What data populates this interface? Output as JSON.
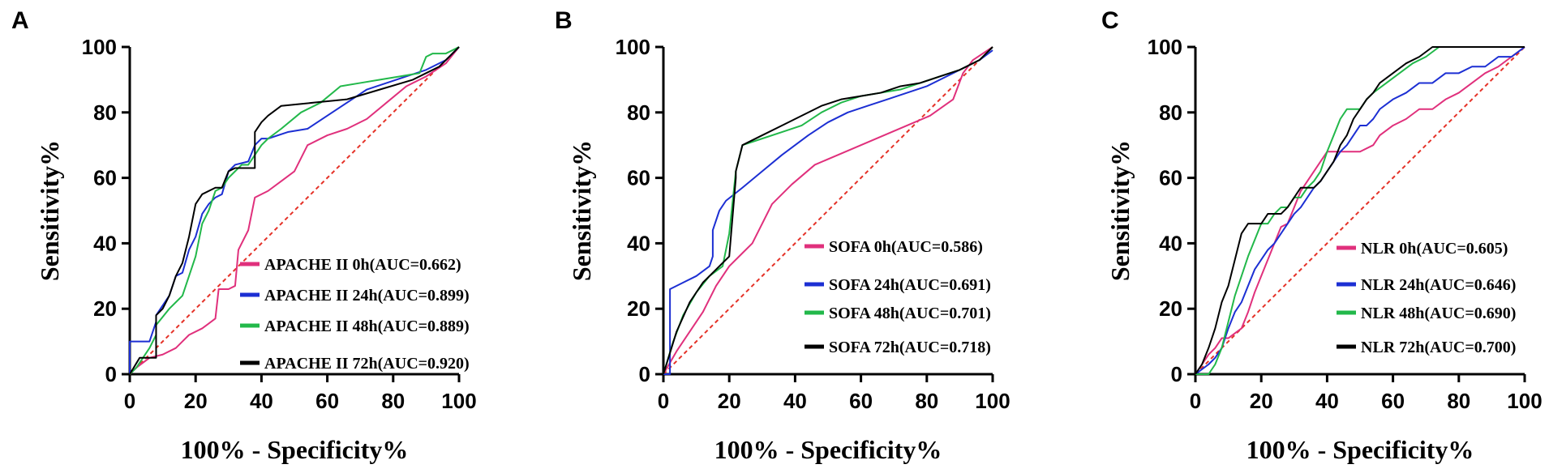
{
  "chart_data": [
    {
      "type": "line",
      "panel_label": "A",
      "xlabel": "100% - Specificity%",
      "ylabel": "Sensitivity%",
      "xlim": [
        0,
        100
      ],
      "ylim": [
        0,
        100
      ],
      "xticks": [
        "0",
        "20",
        "40",
        "60",
        "80",
        "100"
      ],
      "yticks": [
        "0",
        "20",
        "40",
        "60",
        "80",
        "100"
      ],
      "legend_position": "bottom-right",
      "reference_line": {
        "x": [
          0,
          100
        ],
        "y": [
          0,
          100
        ],
        "color": "#e53228",
        "style": "dashed"
      },
      "series": [
        {
          "name": "APACHE II 0h(AUC=0.662)",
          "color": "#e0307c",
          "x": [
            0,
            2,
            6,
            10,
            14,
            16,
            18,
            22,
            26,
            27,
            30,
            32,
            33,
            36,
            38,
            42,
            46,
            50,
            54,
            60,
            66,
            72,
            78,
            84,
            90,
            96,
            100
          ],
          "y": [
            0,
            2,
            5,
            6,
            8,
            10,
            12,
            14,
            17,
            26,
            26,
            27,
            38,
            44,
            54,
            56,
            59,
            62,
            70,
            73,
            75,
            78,
            83,
            88,
            91,
            95,
            100
          ]
        },
        {
          "name": "APACHE II 24h(AUC=0.899)",
          "color": "#1c2fd3",
          "x": [
            0,
            0,
            3,
            6,
            8,
            8,
            12,
            14,
            16,
            18,
            20,
            22,
            24,
            26,
            28,
            30,
            32,
            36,
            38,
            40,
            42,
            48,
            54,
            60,
            66,
            72,
            78,
            84,
            90,
            96,
            100
          ],
          "y": [
            0,
            10,
            10,
            10,
            16,
            18,
            24,
            30,
            31,
            38,
            42,
            49,
            52,
            54,
            55,
            62,
            64,
            65,
            70,
            72,
            72,
            74,
            75,
            79,
            83,
            87,
            89,
            91,
            93,
            96,
            100
          ]
        },
        {
          "name": "APACHE II 48h(AUC=0.889)",
          "color": "#22b84a",
          "x": [
            0,
            2,
            4,
            6,
            8,
            8,
            12,
            14,
            16,
            18,
            20,
            22,
            24,
            26,
            28,
            30,
            32,
            34,
            36,
            38,
            40,
            42,
            46,
            52,
            58,
            64,
            70,
            76,
            82,
            88,
            90,
            92,
            96,
            100
          ],
          "y": [
            0,
            2,
            5,
            8,
            12,
            15,
            20,
            22,
            24,
            30,
            36,
            46,
            50,
            56,
            57,
            60,
            62,
            64,
            64,
            67,
            70,
            72,
            75,
            80,
            83,
            88,
            89,
            90,
            91,
            92,
            97,
            98,
            98,
            100
          ]
        },
        {
          "name": "APACHE II 72h(AUC=0.920)",
          "color": "#000000",
          "x": [
            0,
            3,
            5,
            8,
            8,
            10,
            12,
            14,
            16,
            18,
            20,
            22,
            26,
            28,
            30,
            32,
            36,
            38,
            38,
            40,
            42,
            46,
            56,
            66,
            76,
            86,
            90,
            94,
            96,
            98,
            100
          ],
          "y": [
            0,
            5,
            5,
            5,
            18,
            20,
            24,
            30,
            34,
            42,
            52,
            55,
            57,
            57,
            62,
            63,
            63,
            63,
            74,
            77,
            79,
            82,
            83,
            84,
            87,
            90,
            92,
            94,
            96,
            98,
            100
          ]
        }
      ]
    },
    {
      "type": "line",
      "panel_label": "B",
      "xlabel": "100% - Specificity%",
      "ylabel": "Sensitivity%",
      "xlim": [
        0,
        100
      ],
      "ylim": [
        0,
        100
      ],
      "xticks": [
        "0",
        "20",
        "40",
        "60",
        "80",
        "100"
      ],
      "yticks": [
        "0",
        "20",
        "40",
        "60",
        "80",
        "100"
      ],
      "legend_position": "bottom-right",
      "reference_line": {
        "x": [
          0,
          100
        ],
        "y": [
          0,
          100
        ],
        "color": "#e53228",
        "style": "dashed"
      },
      "series": [
        {
          "name": "SOFA 0h(AUC=0.586)",
          "color": "#e0307c",
          "x": [
            0,
            4,
            8,
            12,
            16,
            20,
            24,
            27,
            30,
            33,
            39,
            46,
            53,
            60,
            67,
            74,
            81,
            88,
            91,
            94,
            100
          ],
          "y": [
            0,
            7,
            13,
            19,
            27,
            33,
            37,
            40,
            46,
            52,
            58,
            64,
            67,
            70,
            73,
            76,
            79,
            84,
            92,
            96,
            100
          ]
        },
        {
          "name": "SOFA 24h(AUC=0.691)",
          "color": "#1c2fd3",
          "x": [
            0,
            2,
            2,
            6,
            10,
            14,
            15,
            15,
            17,
            19,
            24,
            30,
            36,
            44,
            50,
            56,
            62,
            68,
            74,
            80,
            86,
            92,
            96,
            100
          ],
          "y": [
            0,
            0,
            26,
            28,
            30,
            33,
            36,
            44,
            50,
            53,
            57,
            62,
            67,
            73,
            77,
            80,
            82,
            84,
            86,
            88,
            91,
            94,
            96,
            99
          ]
        },
        {
          "name": "SOFA 48h(AUC=0.701)",
          "color": "#22b84a",
          "x": [
            0,
            3,
            6,
            10,
            14,
            18,
            20,
            22,
            24,
            30,
            36,
            42,
            48,
            54,
            60,
            66,
            72,
            78,
            84,
            90,
            96,
            100
          ],
          "y": [
            0,
            10,
            18,
            25,
            30,
            33,
            43,
            62,
            70,
            72,
            74,
            76,
            80,
            83,
            85,
            86,
            87,
            89,
            91,
            93,
            96,
            100
          ]
        },
        {
          "name": "SOFA 72h(AUC=0.718)",
          "color": "#000000",
          "x": [
            0,
            4,
            8,
            12,
            16,
            20,
            22,
            22,
            24,
            30,
            36,
            42,
            48,
            54,
            60,
            66,
            72,
            78,
            84,
            90,
            96,
            100
          ],
          "y": [
            0,
            13,
            22,
            28,
            32,
            36,
            60,
            62,
            70,
            73,
            76,
            79,
            82,
            84,
            85,
            86,
            88,
            89,
            91,
            93,
            96,
            100
          ]
        }
      ]
    },
    {
      "type": "line",
      "panel_label": "C",
      "xlabel": "100% - Specificity%",
      "ylabel": "Sensitivity%",
      "xlim": [
        0,
        100
      ],
      "ylim": [
        0,
        100
      ],
      "xticks": [
        "0",
        "20",
        "40",
        "60",
        "80",
        "100"
      ],
      "yticks": [
        "0",
        "20",
        "40",
        "60",
        "80",
        "100"
      ],
      "legend_position": "bottom-right",
      "reference_line": {
        "x": [
          0,
          100
        ],
        "y": [
          0,
          100
        ],
        "color": "#e53228",
        "style": "dashed"
      },
      "series": [
        {
          "name": "NLR 0h(AUC=0.605)",
          "color": "#e0307c",
          "x": [
            0,
            2,
            4,
            6,
            8,
            10,
            14,
            16,
            18,
            20,
            22,
            24,
            26,
            28,
            30,
            32,
            34,
            36,
            38,
            40,
            42,
            46,
            50,
            54,
            56,
            60,
            64,
            68,
            72,
            76,
            80,
            84,
            88,
            92,
            96,
            100
          ],
          "y": [
            0,
            3,
            6,
            8,
            11,
            11,
            14,
            19,
            25,
            30,
            35,
            40,
            45,
            46,
            51,
            56,
            59,
            62,
            65,
            68,
            68,
            68,
            68,
            70,
            73,
            76,
            78,
            81,
            81,
            84,
            86,
            89,
            92,
            94,
            97,
            100
          ]
        },
        {
          "name": "NLR 24h(AUC=0.646)",
          "color": "#1c2fd3",
          "x": [
            0,
            4,
            6,
            8,
            10,
            12,
            14,
            16,
            18,
            20,
            22,
            24,
            26,
            28,
            30,
            32,
            34,
            36,
            38,
            40,
            42,
            44,
            46,
            48,
            50,
            52,
            54,
            56,
            60,
            64,
            68,
            72,
            76,
            80,
            84,
            88,
            92,
            96,
            100
          ],
          "y": [
            0,
            3,
            5,
            8,
            14,
            19,
            22,
            27,
            32,
            35,
            38,
            40,
            43,
            46,
            49,
            51,
            54,
            57,
            59,
            62,
            65,
            68,
            70,
            73,
            76,
            76,
            78,
            81,
            84,
            86,
            89,
            89,
            92,
            92,
            94,
            94,
            97,
            97,
            100
          ]
        },
        {
          "name": "NLR 48h(AUC=0.690)",
          "color": "#22b84a",
          "x": [
            0,
            4,
            6,
            8,
            10,
            12,
            14,
            16,
            18,
            20,
            22,
            24,
            26,
            28,
            30,
            32,
            34,
            36,
            38,
            40,
            42,
            44,
            46,
            48,
            50,
            52,
            54,
            58,
            62,
            66,
            70,
            74,
            76,
            80,
            84,
            88,
            92,
            96,
            100
          ],
          "y": [
            0,
            0,
            3,
            8,
            16,
            24,
            30,
            36,
            41,
            46,
            46,
            49,
            51,
            51,
            54,
            54,
            57,
            59,
            62,
            68,
            73,
            78,
            81,
            81,
            81,
            84,
            86,
            89,
            92,
            95,
            97,
            100,
            100,
            100,
            100,
            100,
            100,
            100,
            100
          ]
        },
        {
          "name": "NLR 72h(AUC=0.700)",
          "color": "#000000",
          "x": [
            0,
            2,
            4,
            6,
            8,
            10,
            12,
            14,
            16,
            18,
            20,
            22,
            24,
            26,
            28,
            30,
            32,
            34,
            36,
            38,
            40,
            42,
            44,
            46,
            48,
            50,
            52,
            54,
            56,
            60,
            64,
            68,
            72,
            76,
            80,
            84,
            88,
            92,
            96,
            100
          ],
          "y": [
            0,
            3,
            8,
            14,
            22,
            27,
            35,
            43,
            46,
            46,
            46,
            49,
            49,
            49,
            51,
            54,
            57,
            57,
            57,
            59,
            62,
            65,
            70,
            73,
            78,
            81,
            84,
            86,
            89,
            92,
            95,
            97,
            100,
            100,
            100,
            100,
            100,
            100,
            100,
            100
          ]
        }
      ]
    }
  ]
}
